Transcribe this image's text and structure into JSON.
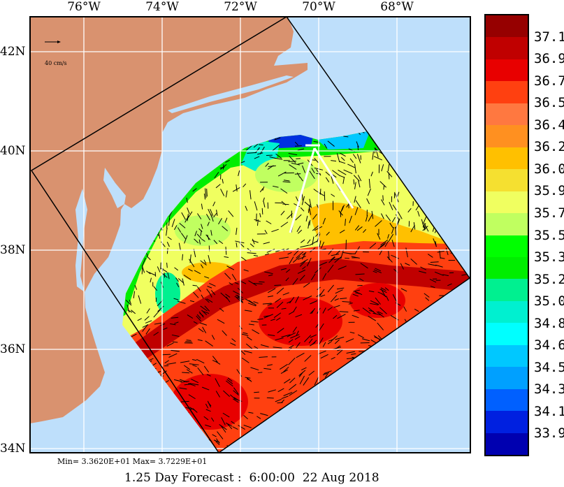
{
  "map": {
    "lon_labels": [
      "76°W",
      "74°W",
      "72°W",
      "70°W",
      "68°W"
    ],
    "lat_labels": [
      "42N",
      "40N",
      "38N",
      "36N",
      "34N"
    ],
    "scale_label": "40 cm/s",
    "land_color": "#d9926f",
    "water_color": "#bedffb"
  },
  "stats": {
    "minmax": "Min= 3.3620E+01  Max= 3.7229E+01"
  },
  "title": "1.25 Day Forecast :  6:00:00  22 Aug 2018",
  "legend": {
    "colors": [
      "#960000",
      "#c00000",
      "#e80000",
      "#ff4010",
      "#ff7840",
      "#ff9020",
      "#ffc000",
      "#f5e030",
      "#f0ff60",
      "#c0ff60",
      "#00ff00",
      "#00ee00",
      "#00f090",
      "#00f0d0",
      "#00ffff",
      "#00c8ff",
      "#00a0ff",
      "#0060ff",
      "#0020e0",
      "#0000b0"
    ],
    "labels": [
      "37.1",
      "36.9",
      "36.7",
      "36.5",
      "36.4",
      "36.2",
      "36.0",
      "35.9",
      "35.7",
      "35.5",
      "35.3",
      "35.2",
      "35.0",
      "34.8",
      "34.6",
      "34.5",
      "34.3",
      "34.1",
      "33.9"
    ]
  }
}
